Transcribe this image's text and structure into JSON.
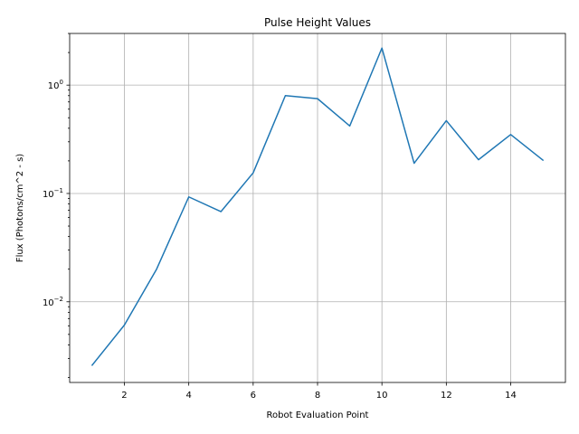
{
  "chart_data": {
    "type": "line",
    "title": "Pulse Height Values",
    "xlabel": "Robot Evaluation Point",
    "ylabel": "Flux (Photons/cm^2 - s)",
    "yscale": "log",
    "grid": true,
    "xlim": [
      0.3,
      15.7
    ],
    "ylim": [
      0.0018,
      3.0
    ],
    "xticks": [
      2,
      4,
      6,
      8,
      10,
      12,
      14
    ],
    "yticks": [
      {
        "value": 0.01,
        "base": "10",
        "exp": "−2"
      },
      {
        "value": 0.1,
        "base": "10",
        "exp": "−1"
      },
      {
        "value": 1,
        "base": "10",
        "exp": "0"
      }
    ],
    "x": [
      1,
      2,
      3,
      4,
      5,
      6,
      7,
      8,
      9,
      10,
      11,
      12,
      13,
      14,
      15
    ],
    "series": [
      {
        "color": "#1f77b4",
        "values": [
          0.0026,
          0.0061,
          0.02,
          0.093,
          0.068,
          0.155,
          0.8,
          0.75,
          0.42,
          2.2,
          0.19,
          0.47,
          0.205,
          0.35,
          0.203
        ]
      }
    ]
  }
}
